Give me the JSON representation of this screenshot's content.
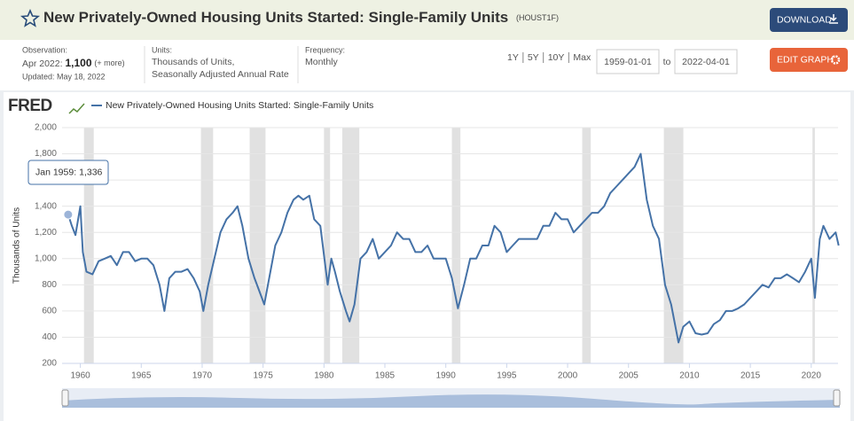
{
  "header": {
    "title": "New Privately-Owned Housing Units Started: Single-Family Units",
    "code": "(HOUST1F)",
    "download": "DOWNLOAD",
    "edit_graph": "EDIT GRAPH"
  },
  "info": {
    "observation_label": "Observation:",
    "observation_date": "Apr 2022:",
    "observation_value": "1,100",
    "more": "(+ more)",
    "updated": "Updated: May 18, 2022",
    "units_label": "Units:",
    "units_line1": "Thousands of Units,",
    "units_line2": "Seasonally Adjusted Annual Rate",
    "frequency_label": "Frequency:",
    "frequency": "Monthly",
    "ranges": [
      "1Y",
      "5Y",
      "10Y",
      "Max"
    ],
    "start_date": "1959-01-01",
    "to": "to",
    "end_date": "2022-04-01"
  },
  "logo": "FRED",
  "chart_data": {
    "type": "line",
    "y_label": "Thousands of Units",
    "x": [
      1959.0,
      1959.3,
      1959.6,
      1960.0,
      1960.2,
      1960.5,
      1961.0,
      1961.5,
      1962.0,
      1962.5,
      1963.0,
      1963.5,
      1964.0,
      1964.5,
      1965.0,
      1965.5,
      1966.0,
      1966.5,
      1966.9,
      1967.3,
      1967.8,
      1968.3,
      1968.8,
      1969.3,
      1969.8,
      1970.1,
      1970.5,
      1971.0,
      1971.5,
      1972.0,
      1972.5,
      1972.9,
      1973.3,
      1973.8,
      1974.3,
      1974.9,
      1975.1,
      1975.6,
      1976.0,
      1976.5,
      1977.0,
      1977.5,
      1977.9,
      1978.3,
      1978.8,
      1979.2,
      1979.7,
      1980.3,
      1980.6,
      1980.9,
      1981.3,
      1981.8,
      1982.1,
      1982.5,
      1983.0,
      1983.5,
      1984.0,
      1984.5,
      1985.0,
      1985.5,
      1986.0,
      1986.5,
      1987.0,
      1987.5,
      1988.0,
      1988.5,
      1989.0,
      1989.5,
      1990.0,
      1990.5,
      1991.0,
      1991.5,
      1992.0,
      1992.5,
      1993.0,
      1993.5,
      1994.0,
      1994.5,
      1995.0,
      1995.5,
      1996.0,
      1996.5,
      1997.0,
      1997.5,
      1998.0,
      1998.5,
      1999.0,
      1999.5,
      2000.0,
      2000.5,
      2001.0,
      2001.5,
      2002.0,
      2002.5,
      2003.0,
      2003.5,
      2004.0,
      2004.5,
      2005.0,
      2005.5,
      2006.0,
      2006.5,
      2007.0,
      2007.5,
      2008.0,
      2008.5,
      2009.1,
      2009.5,
      2010.0,
      2010.5,
      2011.0,
      2011.5,
      2012.0,
      2012.5,
      2013.0,
      2013.5,
      2014.0,
      2014.5,
      2015.0,
      2015.5,
      2016.0,
      2016.5,
      2017.0,
      2017.5,
      2018.0,
      2018.5,
      2019.0,
      2019.5,
      2020.0,
      2020.3,
      2020.7,
      2021.0,
      2021.5,
      2022.0,
      2022.25
    ],
    "series": [
      {
        "name": "New Privately-Owned Housing Units Started: Single-Family Units",
        "color": "#4572a7",
        "values": [
          1336,
          1250,
          1180,
          1400,
          1050,
          900,
          880,
          980,
          1000,
          1020,
          950,
          1050,
          1050,
          980,
          1000,
          1000,
          950,
          800,
          600,
          850,
          900,
          900,
          920,
          850,
          750,
          600,
          800,
          1000,
          1200,
          1300,
          1350,
          1400,
          1250,
          1000,
          850,
          700,
          650,
          900,
          1100,
          1200,
          1350,
          1450,
          1480,
          1450,
          1480,
          1300,
          1250,
          800,
          1000,
          900,
          750,
          600,
          520,
          650,
          1000,
          1050,
          1150,
          1000,
          1050,
          1100,
          1200,
          1150,
          1150,
          1050,
          1050,
          1100,
          1000,
          1000,
          1000,
          850,
          620,
          800,
          1000,
          1000,
          1100,
          1100,
          1250,
          1200,
          1050,
          1100,
          1150,
          1150,
          1150,
          1150,
          1250,
          1250,
          1350,
          1300,
          1300,
          1200,
          1250,
          1300,
          1350,
          1350,
          1400,
          1500,
          1550,
          1600,
          1650,
          1700,
          1800,
          1450,
          1250,
          1150,
          800,
          650,
          360,
          480,
          520,
          430,
          420,
          430,
          500,
          530,
          600,
          600,
          620,
          650,
          700,
          750,
          800,
          780,
          850,
          850,
          880,
          850,
          820,
          900,
          1000,
          700,
          1150,
          1250,
          1150,
          1200,
          1100
        ]
      }
    ],
    "recessions": [
      [
        1960.3,
        1961.1
      ],
      [
        1969.9,
        1970.9
      ],
      [
        1973.9,
        1975.2
      ],
      [
        1980.0,
        1980.5
      ],
      [
        1981.5,
        1982.9
      ],
      [
        1990.5,
        1991.2
      ],
      [
        2001.2,
        2001.9
      ],
      [
        2007.9,
        2009.5
      ],
      [
        2020.1,
        2020.3
      ]
    ],
    "recession_color": "#e1e1e1",
    "xlim": [
      1958.5,
      2022.2
    ],
    "xticks": [
      1960,
      1965,
      1970,
      1975,
      1980,
      1985,
      1990,
      1995,
      2000,
      2005,
      2010,
      2015,
      2020
    ],
    "ylim": [
      200,
      2000
    ],
    "yticks": [
      200,
      400,
      600,
      800,
      {
        "value": 1000,
        "label": "1,000"
      },
      {
        "value": 1200,
        "label": "1,200"
      },
      {
        "value": 1400,
        "label": "1,400"
      },
      {
        "value": 1600,
        "label": "1,600"
      },
      {
        "value": 1800,
        "label": "1,800"
      },
      {
        "value": 2000,
        "label": "2,000"
      }
    ],
    "grid": true,
    "tooltip": {
      "label": "Jan 1959:",
      "x": 1959.0,
      "value": 1336,
      "value_label": "1,336"
    }
  }
}
